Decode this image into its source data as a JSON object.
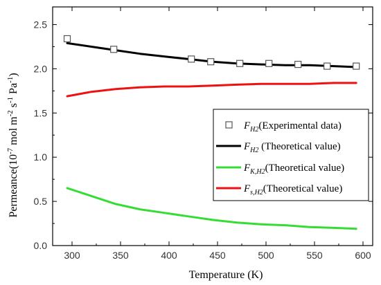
{
  "chart_data": {
    "type": "line",
    "xlabel": "Temperature (K)",
    "ylabel": {
      "main": "Permeance(10",
      "exp1": "-7",
      "part2": " mol m",
      "exp2": "-2",
      "part3": " s",
      "exp3": "-1",
      "part4": " Pa",
      "exp4": "-1",
      "part5": ")"
    },
    "xlim": [
      280,
      610
    ],
    "ylim": [
      0.0,
      2.7
    ],
    "xticks": [
      300,
      350,
      400,
      450,
      500,
      550,
      600
    ],
    "yticks": [
      0.0,
      0.5,
      1.0,
      1.5,
      2.0,
      2.5
    ],
    "xtick_labels": [
      "300",
      "350",
      "400",
      "450",
      "500",
      "550",
      "600"
    ],
    "ytick_labels": [
      "0.0",
      "0.5",
      "1.0",
      "1.5",
      "2.0",
      "2.5"
    ],
    "grid": false,
    "legend_position": "center-right",
    "series": [
      {
        "label": {
          "symbol": "F",
          "sub": "H2",
          "text": "(Experimental data)"
        },
        "style": "markers",
        "marker": "open-square",
        "color": "#000000",
        "x": [
          295,
          343,
          423,
          443,
          473,
          503,
          533,
          563,
          593
        ],
        "y": [
          2.34,
          2.22,
          2.11,
          2.08,
          2.06,
          2.06,
          2.05,
          2.03,
          2.03
        ]
      },
      {
        "label": {
          "symbol": "F",
          "sub": "H2",
          "text": " (Theoretical value)"
        },
        "style": "line",
        "color": "#000000",
        "x": [
          295,
          320,
          345,
          370,
          395,
          420,
          445,
          470,
          495,
          520,
          545,
          570,
          593
        ],
        "y": [
          2.29,
          2.25,
          2.21,
          2.17,
          2.14,
          2.11,
          2.08,
          2.06,
          2.05,
          2.04,
          2.04,
          2.03,
          2.02
        ]
      },
      {
        "label": {
          "symbol": "F",
          "sub": "K,H2",
          "text": "(Theoretical value)"
        },
        "style": "line",
        "color": "#33dd33",
        "x": [
          295,
          320,
          345,
          370,
          395,
          420,
          445,
          470,
          495,
          520,
          545,
          570,
          593
        ],
        "y": [
          0.65,
          0.56,
          0.47,
          0.41,
          0.37,
          0.33,
          0.29,
          0.26,
          0.24,
          0.23,
          0.21,
          0.2,
          0.19
        ]
      },
      {
        "label": {
          "symbol": "F",
          "sub": "s,H2",
          "text": "(Theoretical value)"
        },
        "style": "line",
        "color": "#ee1111",
        "x": [
          295,
          320,
          345,
          370,
          395,
          420,
          445,
          470,
          495,
          520,
          545,
          570,
          593
        ],
        "y": [
          1.69,
          1.74,
          1.77,
          1.79,
          1.8,
          1.8,
          1.81,
          1.82,
          1.83,
          1.83,
          1.83,
          1.84,
          1.84
        ]
      }
    ]
  }
}
